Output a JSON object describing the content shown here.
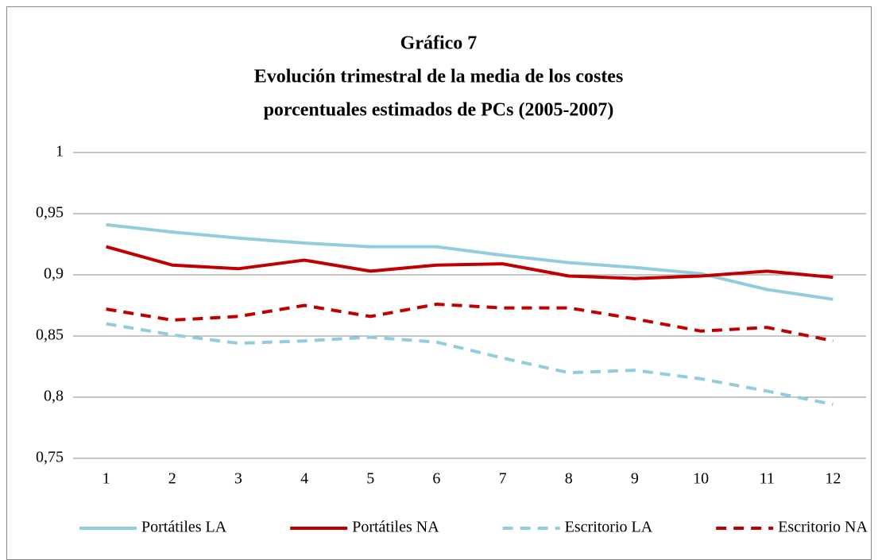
{
  "chart_data": {
    "type": "line",
    "title": "Gráfico 7",
    "subtitle": [
      "Evolución trimestral de la media de los costes",
      "porcentuales estimados de PCs (2005-2007)"
    ],
    "categories": [
      "1",
      "2",
      "3",
      "4",
      "5",
      "6",
      "7",
      "8",
      "9",
      "10",
      "11",
      "12"
    ],
    "ylim": [
      0.75,
      1
    ],
    "yticks": [
      1,
      {
        "value": 0.95,
        "label": "0,95"
      },
      {
        "value": 0.9,
        "label": "0,9"
      },
      {
        "value": 0.85,
        "label": "0,85"
      },
      {
        "value": 0.8,
        "label": "0,8"
      },
      {
        "value": 0.75,
        "label": "0,75"
      }
    ],
    "grid": true,
    "legend": "bottom",
    "series": [
      {
        "name": "Portátiles LA",
        "color": "#93cddd",
        "dashed": false,
        "values": [
          0.941,
          0.935,
          0.93,
          0.926,
          0.923,
          0.923,
          0.916,
          0.91,
          0.906,
          0.901,
          0.888,
          0.88
        ]
      },
      {
        "name": "Portátiles NA",
        "color": "#c00000",
        "dashed": false,
        "values": [
          0.923,
          0.908,
          0.905,
          0.912,
          0.903,
          0.908,
          0.909,
          0.899,
          0.897,
          0.899,
          0.903,
          0.898
        ]
      },
      {
        "name": "Escritorio LA",
        "color": "#93cddd",
        "dashed": true,
        "values": [
          0.86,
          0.851,
          0.844,
          0.846,
          0.849,
          0.845,
          0.832,
          0.82,
          0.822,
          0.815,
          0.805,
          0.794
        ]
      },
      {
        "name": "Escritorio NA",
        "color": "#c00000",
        "dashed": true,
        "values": [
          0.872,
          0.863,
          0.866,
          0.875,
          0.866,
          0.876,
          0.873,
          0.873,
          0.864,
          0.854,
          0.857,
          0.846
        ]
      }
    ]
  }
}
